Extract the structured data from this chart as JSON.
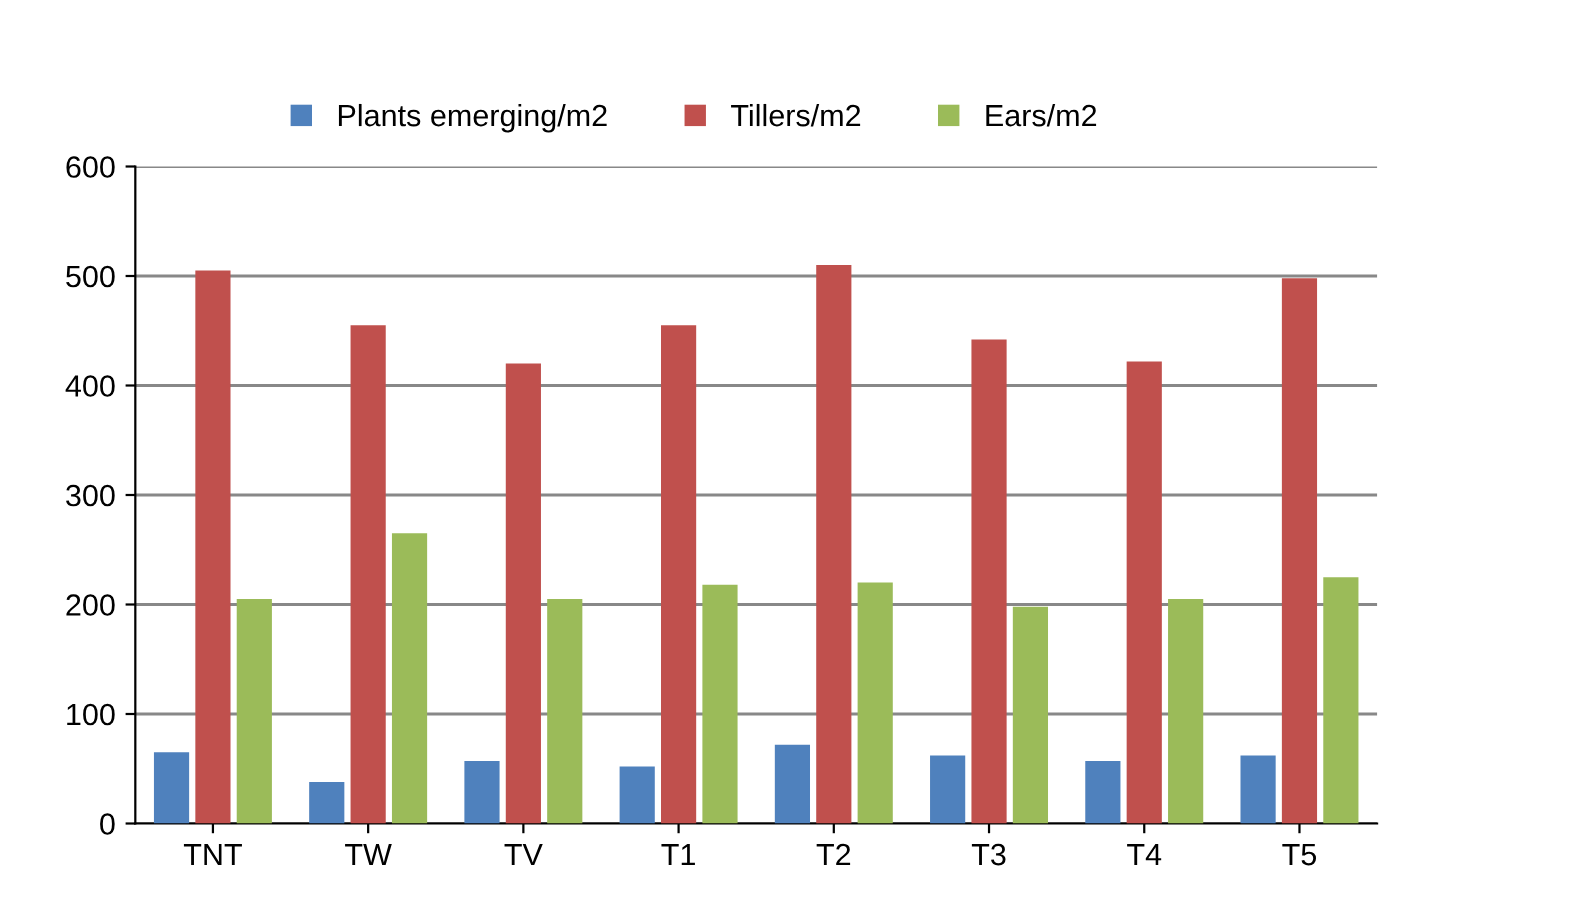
{
  "chart_data": {
    "type": "bar",
    "categories": [
      "TNT",
      "TW",
      "TV",
      "T1",
      "T2",
      "T3",
      "T4",
      "T5"
    ],
    "series": [
      {
        "name": "Plants emerging/m2",
        "color": "#4f81bd",
        "values": [
          65,
          38,
          57,
          52,
          72,
          62,
          57,
          62
        ]
      },
      {
        "name": "Tillers/m2",
        "color": "#c0504d",
        "values": [
          505,
          455,
          420,
          455,
          510,
          442,
          422,
          498
        ]
      },
      {
        "name": "Ears/m2",
        "color": "#9bbb59",
        "values": [
          205,
          265,
          205,
          218,
          220,
          198,
          205,
          225
        ]
      }
    ],
    "ylim": [
      0,
      600
    ],
    "yticks": [
      0,
      100,
      200,
      300,
      400,
      500,
      600
    ],
    "grid": "y",
    "legend": "top"
  }
}
